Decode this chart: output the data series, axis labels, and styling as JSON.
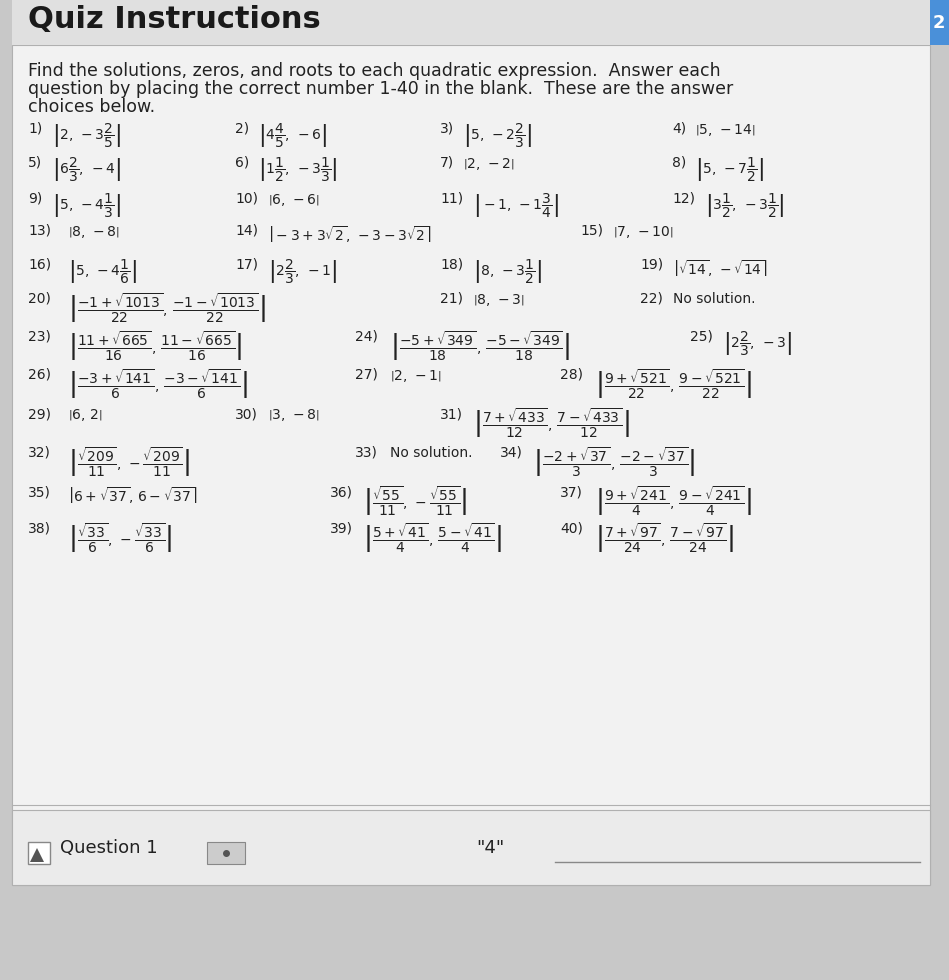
{
  "title": "Quiz Instructions",
  "subtitle_lines": [
    "Find the solutions, zeros, and roots to each quadratic expression.  Answer each",
    "question by placing the correct number 1-40 in the blank.  These are the answer",
    "choices below."
  ],
  "bg_color": "#c8c8c8",
  "card_color": "#f2f2f2",
  "title_color": "#1a1a1a",
  "text_color": "#222222",
  "accent_color": "#4a90d9",
  "question_label": "Question 1",
  "question_answer": "\"4\""
}
